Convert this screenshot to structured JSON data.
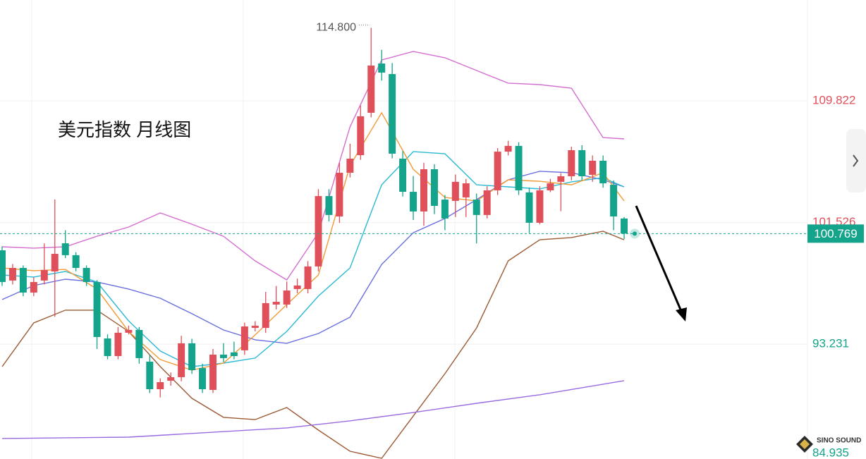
{
  "chart_data": {
    "type": "candlestick",
    "title": "美元指数 月线图",
    "up_color": "#e0505a",
    "down_color": "#13a48b",
    "open": [
      99.63,
      97.57,
      98.43,
      96.75,
      97.57,
      98.19,
      100.11,
      99.3,
      98.43,
      97.47,
      93.62,
      92.42,
      94.01,
      94.2,
      92.04,
      90.16,
      90.74,
      90.98,
      93.29,
      91.6,
      90.11,
      92.52,
      92.67,
      92.81,
      94.34,
      94.34,
      95.93,
      95.93,
      96.99,
      96.99,
      98.53,
      103.33,
      101.94,
      104.92,
      106.12,
      109.01,
      112.37,
      111.65,
      105.88,
      103.62,
      102.28,
      105.16,
      103.09,
      103.0,
      103.24,
      103.09,
      102.04,
      103.72,
      106.36,
      106.75,
      103.58,
      101.51,
      103.72,
      104.3,
      104.68,
      106.46,
      104.78,
      105.74,
      104.1,
      101.8
    ],
    "high": [
      99.9,
      98.7,
      98.6,
      97.8,
      100.1,
      103.1,
      101.0,
      99.5,
      98.6,
      97.6,
      93.9,
      94.4,
      94.5,
      94.4,
      92.5,
      90.9,
      91.3,
      93.8,
      93.6,
      91.9,
      92.9,
      93.3,
      93.4,
      94.7,
      94.8,
      96.8,
      97.2,
      97.5,
      97.7,
      98.9,
      103.8,
      103.8,
      105.6,
      106.9,
      109.5,
      114.8,
      113.3,
      112.4,
      106.4,
      104.7,
      105.6,
      105.5,
      103.4,
      104.8,
      104.5,
      103.5,
      104.0,
      106.6,
      107.1,
      107.0,
      103.9,
      104.0,
      104.5,
      104.9,
      106.7,
      106.8,
      106.1,
      106.1,
      104.4,
      101.9
    ],
    "low": [
      97.2,
      97.3,
      96.5,
      96.5,
      97.3,
      95.1,
      99.1,
      98.2,
      97.2,
      92.9,
      92.2,
      92.2,
      93.9,
      91.9,
      89.9,
      89.6,
      90.4,
      90.7,
      91.2,
      89.9,
      89.9,
      92.0,
      92.2,
      92.5,
      94.1,
      94.0,
      95.6,
      95.7,
      96.7,
      96.7,
      98.2,
      101.6,
      101.5,
      104.6,
      105.8,
      108.7,
      111.2,
      105.9,
      103.3,
      101.7,
      101.3,
      102.1,
      101.0,
      101.9,
      101.9,
      100.1,
      101.8,
      103.4,
      106.1,
      103.4,
      100.8,
      101.4,
      103.6,
      102.3,
      104.4,
      104.4,
      104.3,
      103.9,
      101.0,
      100.4
    ],
    "close": [
      97.47,
      98.43,
      96.75,
      97.47,
      98.29,
      99.39,
      99.3,
      98.43,
      97.47,
      93.72,
      92.42,
      94.01,
      94.2,
      92.28,
      90.16,
      90.64,
      90.98,
      93.29,
      91.46,
      90.16,
      92.52,
      92.28,
      92.42,
      94.44,
      94.49,
      96.03,
      96.12,
      96.89,
      97.23,
      98.53,
      103.33,
      102.04,
      104.92,
      105.88,
      108.77,
      112.23,
      111.75,
      106.22,
      103.62,
      102.28,
      105.16,
      102.66,
      101.8,
      104.3,
      104.2,
      102.04,
      103.72,
      106.36,
      106.75,
      103.72,
      101.51,
      103.72,
      104.2,
      104.68,
      106.46,
      104.68,
      105.74,
      104.2,
      101.94,
      100.77
    ],
    "lines": [
      {
        "color": "#d46fcf",
        "x": [
          0,
          3,
          6,
          9,
          12,
          15,
          18,
          21,
          24,
          27,
          30,
          33,
          36,
          39,
          42,
          45,
          48,
          51,
          54,
          57,
          59
        ],
        "values": [
          99.87,
          99.78,
          99.87,
          100.59,
          101.22,
          102.18,
          101.41,
          100.59,
          98.91,
          97.61,
          100.83,
          108.05,
          112.61,
          113.19,
          112.76,
          111.89,
          111.03,
          110.93,
          110.69,
          107.32,
          107.23
        ]
      },
      {
        "color": "#9c5a34",
        "x": [
          0,
          3,
          6,
          9,
          12,
          15,
          18,
          21,
          24,
          27,
          30,
          33,
          36,
          39,
          42,
          45,
          48,
          51,
          54,
          57,
          59
        ],
        "values": [
          91.7,
          94.68,
          95.55,
          95.55,
          94.1,
          91.7,
          89.54,
          88.24,
          88.09,
          88.91,
          87.37,
          85.93,
          85.45,
          88.33,
          91.22,
          94.34,
          98.91,
          100.35,
          100.5,
          100.93,
          100.35
        ]
      },
      {
        "color": "#6a6ee0",
        "x": [
          0,
          3,
          6,
          9,
          12,
          15,
          18,
          21,
          24,
          27,
          30,
          33,
          36,
          39,
          42,
          45,
          48,
          51,
          54,
          57,
          59
        ],
        "values": [
          96.27,
          97.23,
          97.66,
          97.47,
          96.99,
          96.36,
          95.31,
          94.2,
          93.53,
          93.29,
          93.96,
          95.07,
          98.67,
          100.83,
          101.8,
          103.09,
          104.44,
          105.02,
          104.92,
          104.44,
          103.96
        ]
      },
      {
        "color": "#2bb9d4",
        "x": [
          0,
          3,
          6,
          9,
          12,
          15,
          18,
          21,
          24,
          27,
          30,
          33,
          36,
          39,
          42,
          45,
          48,
          51,
          54,
          57,
          59
        ],
        "values": [
          97.95,
          97.81,
          98.19,
          97.47,
          94.82,
          92.76,
          91.7,
          91.94,
          92.28,
          94.1,
          96.51,
          98.43,
          104.1,
          106.36,
          106.22,
          104.1,
          103.96,
          103.82,
          104.3,
          104.58,
          103.96
        ]
      },
      {
        "color": "#f39a35",
        "x": [
          0,
          3,
          6,
          9,
          12,
          15,
          18,
          21,
          24,
          27,
          30,
          33,
          36,
          39,
          42,
          45,
          48,
          51,
          54,
          57,
          59
        ],
        "values": [
          98.43,
          98.24,
          98.33,
          96.99,
          94.1,
          92.18,
          91.46,
          91.94,
          93.86,
          95.93,
          97.95,
          105.4,
          109.01,
          105.16,
          103.24,
          103.0,
          104.44,
          104.34,
          104.1,
          104.92,
          103.0
        ]
      },
      {
        "color": "#9a6be0",
        "x": [
          0,
          12,
          27,
          33,
          39,
          45,
          51,
          57,
          59
        ],
        "values": [
          86.8,
          86.89,
          87.52,
          88.0,
          88.57,
          89.2,
          89.78,
          90.5,
          90.74
        ]
      }
    ],
    "ylim": [
      85.4,
      116.7
    ],
    "yticks": [
      84.935,
      93.231,
      101.526,
      109.822
    ],
    "grid": true,
    "last_price": 100.769,
    "max_label": {
      "value": 114.8,
      "label": "114.800"
    },
    "watermark": "SINO SOUND"
  }
}
